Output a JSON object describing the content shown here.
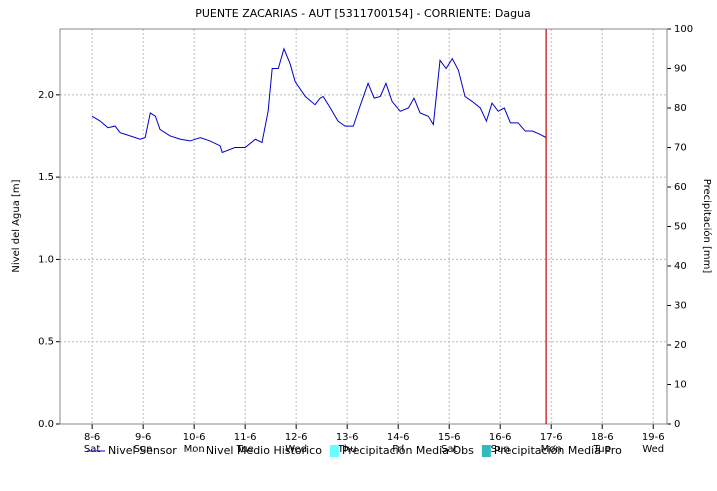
{
  "chart_data": {
    "type": "line",
    "title": "PUENTE ZACARIAS - AUT   [5311700154] - CORRIENTE: Dagua",
    "y_label": "Nivel del Agua [m]",
    "y2_label": "Precipitación [mm]",
    "xlim": [
      7.37,
      19.27
    ],
    "xticks": [
      {
        "value": 8,
        "label": "8-6"
      },
      {
        "value": 9,
        "label": "9-6"
      },
      {
        "value": 10,
        "label": "10-6"
      },
      {
        "value": 11,
        "label": "11-6"
      },
      {
        "value": 12,
        "label": "12-6"
      },
      {
        "value": 13,
        "label": "13-6"
      },
      {
        "value": 14,
        "label": "14-6"
      },
      {
        "value": 15,
        "label": "15-6"
      },
      {
        "value": 16,
        "label": "16-6"
      },
      {
        "value": 17,
        "label": "17-6"
      },
      {
        "value": 18,
        "label": "18-6"
      },
      {
        "value": 19,
        "label": "19-6"
      }
    ],
    "xtick_weekdays": [
      "Sat",
      "Sun",
      "Mon",
      "Tue",
      "Wed",
      "Thu",
      "Fri",
      "Sat",
      "Sun",
      "Mon",
      "Tue",
      "Wed"
    ],
    "ylim": [
      0,
      2.4
    ],
    "yticks": [
      {
        "value": 0,
        "label": "0.0"
      },
      0.5,
      {
        "value": 1,
        "label": "1.0"
      },
      1.5,
      {
        "value": 2,
        "label": "2.0"
      }
    ],
    "y2lim": [
      0,
      100
    ],
    "y2ticks": [
      0,
      10,
      20,
      30,
      40,
      50,
      60,
      70,
      80,
      90,
      100
    ],
    "grid": true,
    "now_line": {
      "value": 16.9,
      "color": "#cc0000"
    },
    "series": [
      {
        "name": "Nivel Sensor",
        "color": "#0000cc",
        "x": [
          8.0,
          8.16,
          8.31,
          8.45,
          8.55,
          8.75,
          8.94,
          9.04,
          9.14,
          9.24,
          9.33,
          9.53,
          9.73,
          9.92,
          10.12,
          10.31,
          10.51,
          10.55,
          10.8,
          11.0,
          11.2,
          11.33,
          11.45,
          11.53,
          11.65,
          11.76,
          11.88,
          11.98,
          12.18,
          12.37,
          12.47,
          12.53,
          12.67,
          12.82,
          12.96,
          13.12,
          13.25,
          13.41,
          13.53,
          13.65,
          13.76,
          13.88,
          14.04,
          14.2,
          14.31,
          14.43,
          14.59,
          14.69,
          14.82,
          14.94,
          15.06,
          15.18,
          15.31,
          15.45,
          15.61,
          15.73,
          15.84,
          15.96,
          16.08,
          16.2,
          16.35,
          16.49,
          16.63,
          16.78,
          16.9
        ],
        "values": [
          1.87,
          1.84,
          1.8,
          1.81,
          1.77,
          1.75,
          1.73,
          1.74,
          1.89,
          1.87,
          1.79,
          1.75,
          1.73,
          1.72,
          1.74,
          1.72,
          1.69,
          1.65,
          1.68,
          1.68,
          1.73,
          1.71,
          1.9,
          2.16,
          2.16,
          2.28,
          2.19,
          2.08,
          1.99,
          1.94,
          1.98,
          1.99,
          1.92,
          1.84,
          1.81,
          1.81,
          1.93,
          2.07,
          1.98,
          1.99,
          2.07,
          1.96,
          1.9,
          1.92,
          1.98,
          1.89,
          1.87,
          1.82,
          2.21,
          2.16,
          2.22,
          2.15,
          1.99,
          1.96,
          1.92,
          1.84,
          1.95,
          1.9,
          1.92,
          1.83,
          1.83,
          1.78,
          1.78,
          1.76,
          1.74
        ]
      }
    ],
    "legend": [
      {
        "name": "Nivel Sensor",
        "color": "#0000cc",
        "style": "line"
      },
      {
        "name": "Nivel Medio Historico",
        "color": "#aaaaaa",
        "style": "dashed"
      },
      {
        "name": "Precipitación Media Obs",
        "color": "#66ffff",
        "style": "box"
      },
      {
        "name": "Precipitación Media Pro",
        "color": "#33bbbb",
        "style": "box"
      }
    ]
  }
}
